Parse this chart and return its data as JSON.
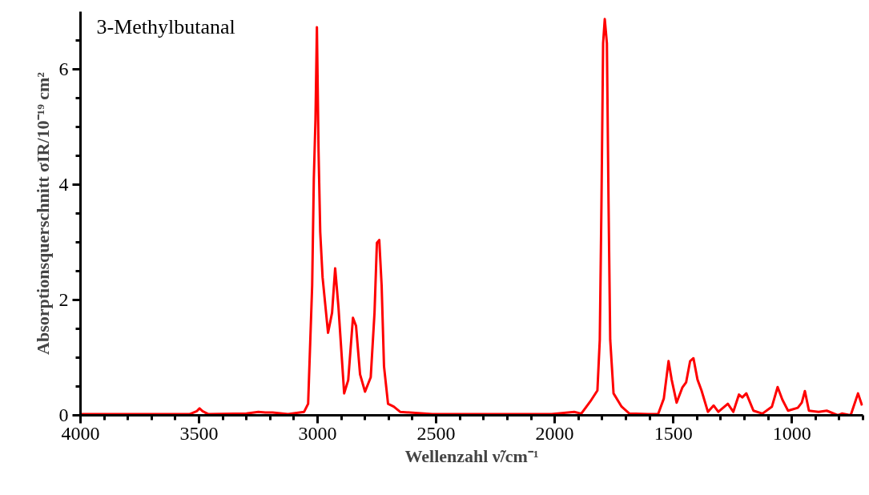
{
  "chart_data": {
    "type": "line",
    "title": "3-Methylbutanal",
    "xlabel": "Wellenzahl ν̃/cm⁻¹",
    "ylabel": "Absorptionsquerschnitt σIR/10⁻¹⁹ cm²",
    "xlim": [
      4000,
      700
    ],
    "ylim": [
      0,
      7
    ],
    "xticks": [
      4000,
      {
        "value": 3900,
        "label": null
      },
      {
        "value": 3800,
        "label": null
      },
      {
        "value": 3700,
        "label": null
      },
      {
        "value": 3600,
        "label": null
      },
      3500,
      {
        "value": 3400,
        "label": null
      },
      {
        "value": 3300,
        "label": null
      },
      {
        "value": 3200,
        "label": null
      },
      {
        "value": 3100,
        "label": null
      },
      3000,
      {
        "value": 2900,
        "label": null
      },
      {
        "value": 2800,
        "label": null
      },
      {
        "value": 2700,
        "label": null
      },
      {
        "value": 2600,
        "label": null
      },
      2500,
      {
        "value": 2400,
        "label": null
      },
      {
        "value": 2300,
        "label": null
      },
      {
        "value": 2200,
        "label": null
      },
      {
        "value": 2100,
        "label": null
      },
      2000,
      {
        "value": 1900,
        "label": null
      },
      {
        "value": 1800,
        "label": null
      },
      {
        "value": 1700,
        "label": null
      },
      {
        "value": 1600,
        "label": null
      },
      1500,
      {
        "value": 1400,
        "label": null
      },
      {
        "value": 1300,
        "label": null
      },
      {
        "value": 1200,
        "label": null
      },
      {
        "value": 1100,
        "label": null
      },
      1000,
      {
        "value": 900,
        "label": null
      },
      {
        "value": 800,
        "label": null
      },
      {
        "value": 700,
        "label": null
      }
    ],
    "yticks": [
      0,
      {
        "value": 0.5,
        "label": null
      },
      {
        "value": 1,
        "label": null
      },
      {
        "value": 1.5,
        "label": null
      },
      2,
      {
        "value": 2.5,
        "label": null
      },
      {
        "value": 3,
        "label": null
      },
      {
        "value": 3.5,
        "label": null
      },
      4,
      {
        "value": 4.5,
        "label": null
      },
      {
        "value": 5,
        "label": null
      },
      {
        "value": 5.5,
        "label": null
      },
      6,
      {
        "value": 6.5,
        "label": null
      }
    ],
    "grid": false,
    "marker": "none",
    "line_style": "solid",
    "series": [
      {
        "color": "#ff0000",
        "x": [
          4000,
          3800,
          3600,
          3540,
          3510,
          3498,
          3485,
          3460,
          3300,
          3250,
          3220,
          3190,
          3125,
          3057,
          3040,
          3023,
          3016,
          3009,
          3003,
          2996,
          2989,
          2979,
          2956,
          2939,
          2926,
          2912,
          2888,
          2871,
          2851,
          2838,
          2821,
          2800,
          2776,
          2760,
          2750,
          2740,
          2730,
          2720,
          2703,
          2679,
          2652,
          2516,
          2200,
          2013,
          1918,
          1888,
          1850,
          1820,
          1810,
          1803,
          1796,
          1789,
          1780,
          1773,
          1766,
          1752,
          1718,
          1685,
          1607,
          1564,
          1540,
          1520,
          1507,
          1486,
          1462,
          1446,
          1429,
          1415,
          1398,
          1381,
          1354,
          1330,
          1310,
          1270,
          1247,
          1223,
          1209,
          1192,
          1162,
          1124,
          1084,
          1060,
          1040,
          1016,
          975,
          958,
          945,
          928,
          887,
          853,
          806,
          789,
          752,
          721,
          704
        ],
        "values": [
          0.02,
          0.02,
          0.02,
          0.02,
          0.07,
          0.12,
          0.07,
          0.02,
          0.03,
          0.06,
          0.05,
          0.05,
          0.02,
          0.06,
          0.2,
          2.25,
          4.1,
          5.13,
          6.73,
          4.57,
          3.18,
          2.39,
          1.43,
          1.78,
          2.55,
          1.87,
          0.38,
          0.61,
          1.69,
          1.55,
          0.71,
          0.41,
          0.66,
          1.78,
          2.99,
          3.04,
          2.25,
          0.85,
          0.2,
          0.15,
          0.06,
          0.02,
          0.02,
          0.02,
          0.06,
          0.03,
          0.24,
          0.43,
          1.31,
          3.65,
          6.45,
          6.87,
          6.45,
          3.65,
          1.31,
          0.38,
          0.15,
          0.03,
          0.02,
          0.02,
          0.29,
          0.94,
          0.62,
          0.22,
          0.48,
          0.57,
          0.94,
          0.99,
          0.62,
          0.43,
          0.06,
          0.17,
          0.06,
          0.2,
          0.06,
          0.36,
          0.31,
          0.38,
          0.08,
          0.03,
          0.15,
          0.49,
          0.27,
          0.08,
          0.13,
          0.22,
          0.42,
          0.08,
          0.06,
          0.08,
          0.0,
          0.03,
          0.0,
          0.38,
          0.17
        ]
      }
    ]
  }
}
